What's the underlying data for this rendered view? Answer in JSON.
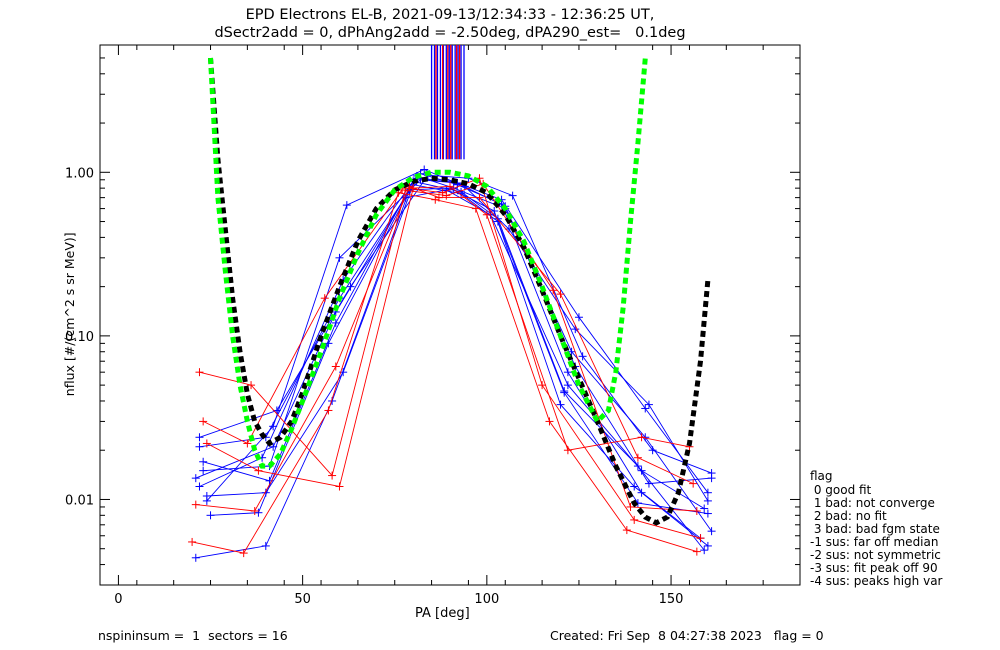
{
  "header": {
    "title_line1": "EPD Electrons EL-B, 2021-09-13/12:34:33 - 12:36:25 UT,",
    "title_line2": "dSectr2add = 0, dPhAng2add = -2.50deg, dPA290_est=   0.1deg"
  },
  "footer": {
    "left": "nspininsum =  1  sectors = 16",
    "right": "Created: Fri Sep  8 04:27:38 2023   flag = 0"
  },
  "legend": {
    "title": "flag",
    "items": [
      " 0 good fit",
      " 1 bad: not converge",
      " 2 bad: no fit",
      " 3 bad: bad fgm state",
      "-1 sus: far off median",
      "-2 sus: not symmetric",
      "-3 sus: fit peak off 90",
      "-4 sus: peaks high var"
    ]
  },
  "colors": {
    "blue_series": "#0000ff",
    "red_series": "#ff0000",
    "fit_black": "#000000",
    "fit_green": "#00ff00"
  },
  "chart_data": {
    "type": "line",
    "xlabel": "PA [deg]",
    "ylabel": "nflux [#/(cm^2 s sr MeV)]",
    "xlim": [
      -5,
      185
    ],
    "ylim": [
      0.003,
      6.0
    ],
    "yscale": "log",
    "xticks": [
      0,
      50,
      100,
      150
    ],
    "xtick_labels": [
      "0",
      "50",
      "100",
      "150"
    ],
    "yticks": [
      0.01,
      0.1,
      1.0
    ],
    "ytick_labels": [
      "0.01",
      "0.10",
      "1.00"
    ],
    "fit_curves": [
      {
        "color": "black",
        "style": "dashed",
        "x": [
          25,
          27,
          29,
          31,
          33,
          35,
          37,
          39,
          41,
          44,
          47,
          50,
          55,
          60,
          65,
          70,
          75,
          80,
          85,
          90,
          95,
          100,
          105,
          110,
          115,
          120,
          125,
          130,
          135,
          140,
          143,
          146,
          149,
          152,
          155,
          158,
          160
        ],
        "y": [
          5.0,
          1.2,
          0.45,
          0.17,
          0.08,
          0.044,
          0.03,
          0.025,
          0.022,
          0.024,
          0.03,
          0.045,
          0.1,
          0.2,
          0.38,
          0.6,
          0.78,
          0.88,
          0.92,
          0.9,
          0.85,
          0.75,
          0.55,
          0.35,
          0.19,
          0.1,
          0.055,
          0.03,
          0.016,
          0.0095,
          0.0078,
          0.0072,
          0.0078,
          0.011,
          0.022,
          0.07,
          0.22
        ]
      },
      {
        "color": "green",
        "style": "dashed",
        "x": [
          25,
          27,
          29,
          31,
          33,
          35,
          37,
          39,
          41,
          44,
          47,
          50,
          55,
          60,
          65,
          70,
          75,
          80,
          85,
          90,
          95,
          100,
          105,
          110,
          115,
          120,
          125,
          130,
          133,
          135,
          137,
          139,
          141,
          143
        ],
        "y": [
          5.0,
          0.7,
          0.25,
          0.1,
          0.05,
          0.03,
          0.02,
          0.016,
          0.016,
          0.019,
          0.027,
          0.04,
          0.08,
          0.17,
          0.32,
          0.55,
          0.78,
          0.93,
          1.0,
          1.0,
          0.95,
          0.82,
          0.6,
          0.38,
          0.2,
          0.1,
          0.05,
          0.03,
          0.035,
          0.06,
          0.15,
          0.5,
          1.5,
          5.0
        ]
      }
    ],
    "marker_series": [
      {
        "color": "blue",
        "x": [
          22,
          40,
          60,
          82,
          92,
          104,
          122,
          142,
          160
        ],
        "y": [
          0.021,
          0.024,
          0.17,
          0.98,
          0.84,
          0.64,
          0.06,
          0.011,
          0.0052
        ]
      },
      {
        "color": "blue",
        "x": [
          23,
          41,
          59,
          80,
          93,
          103,
          121,
          141,
          159
        ],
        "y": [
          0.017,
          0.013,
          0.12,
          0.88,
          0.76,
          0.52,
          0.046,
          0.016,
          0.0049
        ]
      },
      {
        "color": "blue",
        "x": [
          22,
          39,
          61,
          81,
          91,
          105,
          123,
          143,
          161
        ],
        "y": [
          0.012,
          0.018,
          0.22,
          0.95,
          0.8,
          0.6,
          0.08,
          0.024,
          0.0064
        ]
      },
      {
        "color": "blue",
        "x": [
          24,
          42,
          62,
          83,
          94,
          106,
          124,
          144,
          160
        ],
        "y": [
          0.0098,
          0.028,
          0.63,
          1.04,
          0.82,
          0.45,
          0.11,
          0.038,
          0.0098
        ]
      },
      {
        "color": "blue",
        "x": [
          21,
          40,
          58,
          79,
          90,
          102,
          120,
          140,
          158
        ],
        "y": [
          0.0044,
          0.0052,
          0.04,
          0.78,
          0.8,
          0.58,
          0.038,
          0.012,
          0.0058
        ]
      },
      {
        "color": "blue",
        "x": [
          23,
          41,
          60,
          82,
          92,
          104,
          125,
          143,
          160
        ],
        "y": [
          0.015,
          0.016,
          0.3,
          0.9,
          0.86,
          0.68,
          0.13,
          0.036,
          0.011
        ]
      },
      {
        "color": "blue",
        "x": [
          25,
          38,
          57,
          78,
          89,
          101,
          122,
          142,
          159
        ],
        "y": [
          0.008,
          0.0083,
          0.09,
          0.7,
          0.78,
          0.55,
          0.05,
          0.015,
          0.0088
        ]
      },
      {
        "color": "blue",
        "x": [
          22,
          43,
          63,
          84,
          95,
          107,
          126,
          145,
          161
        ],
        "y": [
          0.024,
          0.035,
          0.2,
          0.96,
          0.92,
          0.72,
          0.075,
          0.02,
          0.0145
        ]
      },
      {
        "color": "blue",
        "x": [
          24,
          40,
          61,
          80,
          93,
          103,
          121,
          141,
          160
        ],
        "y": [
          0.0105,
          0.011,
          0.06,
          0.84,
          0.74,
          0.5,
          0.045,
          0.0095,
          0.0082
        ]
      },
      {
        "color": "blue",
        "x": [
          21,
          42,
          59,
          81,
          91,
          105,
          124,
          144,
          161
        ],
        "y": [
          0.0135,
          0.021,
          0.14,
          0.92,
          0.88,
          0.62,
          0.065,
          0.0125,
          0.0135
        ]
      },
      {
        "color": "red",
        "x": [
          22,
          36,
          58,
          78,
          88,
          98,
          115,
          140,
          158
        ],
        "y": [
          0.06,
          0.05,
          0.014,
          0.8,
          0.75,
          0.92,
          0.05,
          0.0075,
          0.0058
        ]
      },
      {
        "color": "red",
        "x": [
          23,
          35,
          56,
          77,
          89,
          99,
          118,
          139,
          157
        ],
        "y": [
          0.03,
          0.022,
          0.17,
          0.78,
          0.72,
          0.85,
          0.19,
          0.009,
          0.0085
        ]
      },
      {
        "color": "red",
        "x": [
          21,
          37,
          59,
          79,
          87,
          98,
          120,
          141,
          156
        ],
        "y": [
          0.0093,
          0.0085,
          0.065,
          0.82,
          0.7,
          0.7,
          0.18,
          0.018,
          0.0125
        ]
      },
      {
        "color": "red",
        "x": [
          20,
          34,
          57,
          76,
          86,
          97,
          117,
          138,
          157
        ],
        "y": [
          0.0055,
          0.0047,
          0.035,
          0.75,
          0.68,
          0.6,
          0.03,
          0.0065,
          0.0048
        ]
      },
      {
        "color": "red",
        "x": [
          24,
          38,
          60,
          80,
          90,
          100,
          122,
          142,
          155
        ],
        "y": [
          0.022,
          0.015,
          0.012,
          0.8,
          0.82,
          0.55,
          0.02,
          0.024,
          0.021
        ]
      }
    ],
    "vertical_marks": {
      "pa_range": [
        85,
        94
      ],
      "y_range": [
        1.2,
        6.0
      ],
      "blue_x": [
        85.0,
        85.8,
        86.6,
        87.4,
        88.2,
        89.0,
        89.8,
        90.6,
        91.4,
        92.2,
        93.0,
        93.8
      ],
      "red_x": [
        86.2,
        88.0,
        89.4,
        90.2,
        91.8,
        92.6
      ]
    }
  }
}
